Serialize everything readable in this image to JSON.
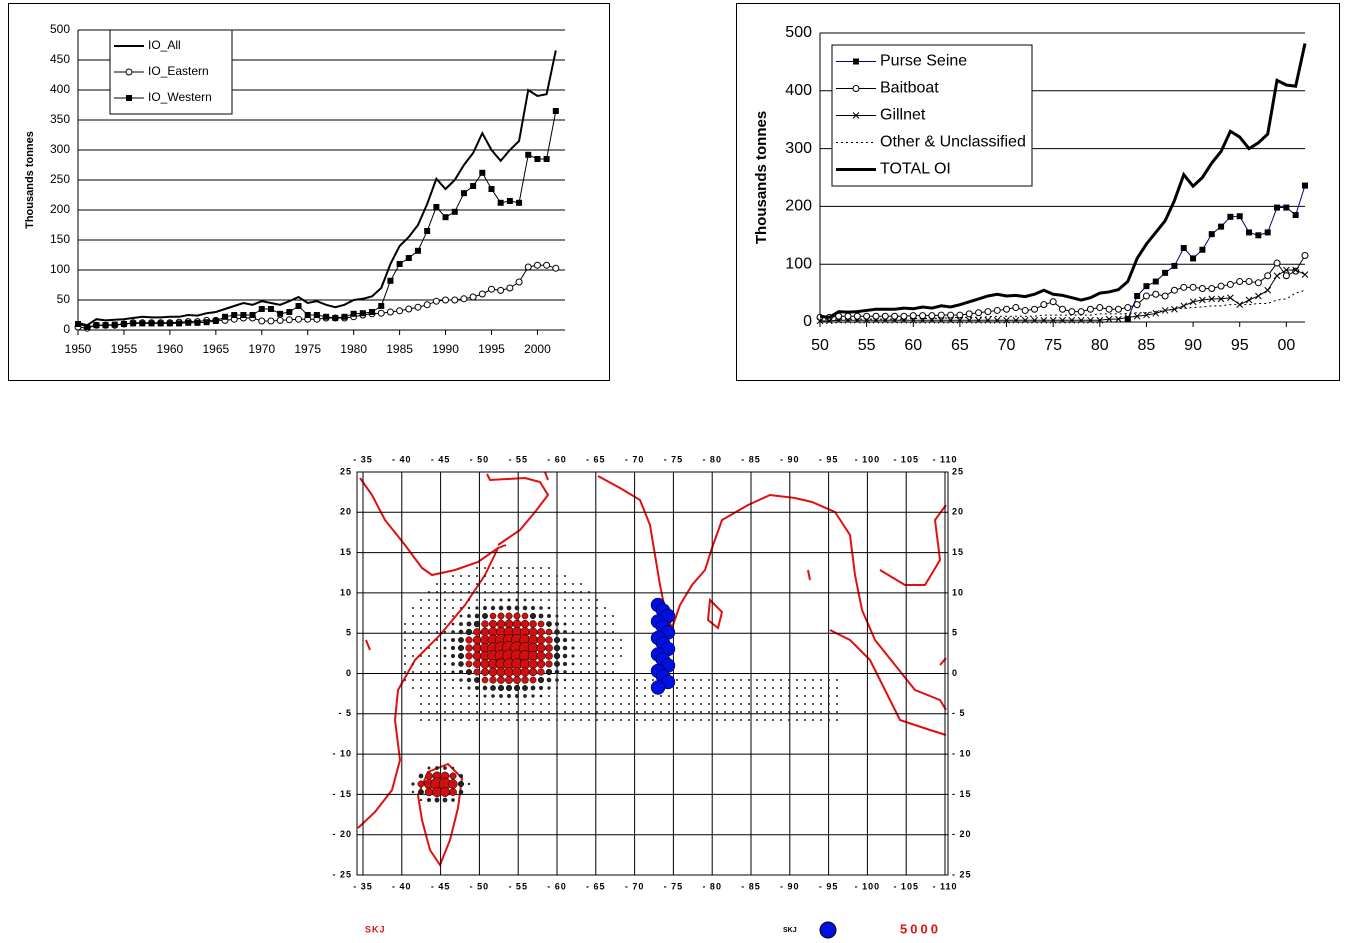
{
  "chart_data": [
    {
      "type": "line",
      "ylabel": "Thousands tonnes",
      "x": [
        1950,
        1951,
        1952,
        1953,
        1954,
        1955,
        1956,
        1957,
        1958,
        1959,
        1960,
        1961,
        1962,
        1963,
        1964,
        1965,
        1966,
        1967,
        1968,
        1969,
        1970,
        1971,
        1972,
        1973,
        1974,
        1975,
        1976,
        1977,
        1978,
        1979,
        1980,
        1981,
        1982,
        1983,
        1984,
        1985,
        1986,
        1987,
        1988,
        1989,
        1990,
        1991,
        1992,
        1993,
        1994,
        1995,
        1996,
        1997,
        1998,
        1999,
        2000,
        2001,
        2002
      ],
      "xlim": [
        1950,
        2003
      ],
      "xticks": [
        1950,
        1955,
        1960,
        1965,
        1970,
        1975,
        1980,
        1985,
        1990,
        1995,
        2000
      ],
      "ylim": [
        0,
        500
      ],
      "yticks": [
        0,
        50,
        100,
        150,
        200,
        250,
        300,
        350,
        400,
        450,
        500
      ],
      "grid": true,
      "legend": "top-left",
      "series": [
        {
          "name": "IO_All",
          "color": "#000000",
          "marker": "none",
          "width": 2,
          "values": [
            12,
            8,
            18,
            16,
            17,
            18,
            20,
            22,
            21,
            21,
            22,
            22,
            25,
            24,
            28,
            30,
            35,
            40,
            45,
            42,
            48,
            45,
            42,
            48,
            55,
            45,
            48,
            42,
            38,
            42,
            50,
            52,
            56,
            70,
            110,
            140,
            155,
            175,
            210,
            252,
            235,
            250,
            275,
            295,
            328,
            300,
            282,
            300,
            315,
            400,
            390,
            393,
            466
          ]
        },
        {
          "name": "IO_Eastern",
          "color": "#000000",
          "marker": "circle",
          "width": 1,
          "values": [
            5,
            3,
            8,
            8,
            8,
            10,
            12,
            12,
            12,
            12,
            12,
            13,
            14,
            14,
            16,
            16,
            16,
            18,
            20,
            20,
            15,
            15,
            16,
            17,
            18,
            18,
            18,
            20,
            20,
            20,
            22,
            25,
            27,
            28,
            30,
            32,
            35,
            38,
            42,
            48,
            50,
            50,
            52,
            55,
            60,
            68,
            66,
            70,
            80,
            105,
            108,
            108,
            103
          ]
        },
        {
          "name": "IO_Western",
          "color": "#000000",
          "marker": "square",
          "width": 1,
          "values": [
            10,
            5,
            8,
            8,
            9,
            10,
            11,
            11,
            11,
            11,
            11,
            11,
            12,
            12,
            13,
            15,
            22,
            25,
            25,
            25,
            35,
            35,
            27,
            30,
            40,
            25,
            25,
            22,
            20,
            22,
            27,
            28,
            30,
            40,
            82,
            110,
            120,
            132,
            165,
            205,
            188,
            197,
            228,
            240,
            262,
            235,
            212,
            215,
            212,
            292,
            285,
            285,
            365
          ]
        }
      ]
    },
    {
      "type": "line",
      "ylabel": "Thousands tonnes",
      "x": [
        1950,
        1951,
        1952,
        1953,
        1954,
        1955,
        1956,
        1957,
        1958,
        1959,
        1960,
        1961,
        1962,
        1963,
        1964,
        1965,
        1966,
        1967,
        1968,
        1969,
        1970,
        1971,
        1972,
        1973,
        1974,
        1975,
        1976,
        1977,
        1978,
        1979,
        1980,
        1981,
        1982,
        1983,
        1984,
        1985,
        1986,
        1987,
        1988,
        1989,
        1990,
        1991,
        1992,
        1993,
        1994,
        1995,
        1996,
        1997,
        1998,
        1999,
        2000,
        2001,
        2002
      ],
      "xlim": [
        1950,
        2002
      ],
      "xticks": [
        {
          "value": 1950,
          "label": "50"
        },
        {
          "value": 1955,
          "label": "55"
        },
        {
          "value": 1960,
          "label": "60"
        },
        {
          "value": 1965,
          "label": "65"
        },
        {
          "value": 1970,
          "label": "70"
        },
        {
          "value": 1975,
          "label": "75"
        },
        {
          "value": 1980,
          "label": "80"
        },
        {
          "value": 1985,
          "label": "85"
        },
        {
          "value": 1990,
          "label": "90"
        },
        {
          "value": 1995,
          "label": "95"
        },
        {
          "value": 2000,
          "label": "00"
        }
      ],
      "ylim": [
        0,
        500
      ],
      "yticks": [
        0,
        100,
        200,
        300,
        400,
        500
      ],
      "grid": true,
      "legend": "top-left",
      "series": [
        {
          "name": "Purse Seine",
          "color": "#000080",
          "marker": "square",
          "width": 1,
          "values": [
            null,
            null,
            null,
            null,
            null,
            null,
            null,
            null,
            null,
            null,
            null,
            null,
            null,
            null,
            null,
            null,
            null,
            null,
            null,
            null,
            null,
            null,
            null,
            null,
            null,
            null,
            null,
            null,
            null,
            null,
            null,
            null,
            null,
            5,
            45,
            62,
            70,
            85,
            97,
            128,
            110,
            125,
            152,
            165,
            182,
            183,
            155,
            150,
            155,
            198,
            198,
            185,
            236
          ]
        },
        {
          "name": "Baitboat",
          "color": "#000000",
          "marker": "circle",
          "width": 1,
          "values": [
            8,
            8,
            10,
            10,
            10,
            10,
            10,
            10,
            10,
            10,
            11,
            11,
            11,
            12,
            12,
            12,
            14,
            16,
            18,
            20,
            22,
            25,
            20,
            22,
            30,
            35,
            22,
            18,
            18,
            22,
            25,
            22,
            22,
            25,
            30,
            45,
            48,
            45,
            55,
            60,
            60,
            58,
            58,
            62,
            65,
            70,
            70,
            68,
            80,
            102,
            80,
            88,
            115
          ]
        },
        {
          "name": "Gillnet",
          "color": "#000000",
          "marker": "x",
          "width": 1,
          "values": [
            2,
            2,
            3,
            3,
            3,
            3,
            3,
            3,
            3,
            3,
            3,
            3,
            3,
            3,
            3,
            3,
            3,
            3,
            3,
            3,
            3,
            3,
            3,
            3,
            3,
            3,
            3,
            3,
            3,
            3,
            3,
            5,
            5,
            8,
            10,
            12,
            15,
            20,
            22,
            28,
            35,
            38,
            40,
            40,
            42,
            30,
            38,
            45,
            55,
            80,
            90,
            90,
            82
          ]
        },
        {
          "name": "Other & Unclassified",
          "color": "#000000",
          "marker": "none",
          "width": 1,
          "dash": "dotted",
          "values": [
            5,
            5,
            5,
            5,
            5,
            5,
            5,
            5,
            5,
            5,
            6,
            6,
            6,
            7,
            7,
            8,
            8,
            8,
            9,
            10,
            10,
            10,
            10,
            10,
            12,
            12,
            12,
            12,
            12,
            12,
            14,
            14,
            14,
            15,
            16,
            16,
            18,
            20,
            22,
            24,
            25,
            26,
            28,
            28,
            30,
            30,
            30,
            32,
            32,
            38,
            40,
            50,
            55
          ]
        },
        {
          "name": "TOTAL OI",
          "color": "#000000",
          "marker": "none",
          "width": 3,
          "values": [
            10,
            8,
            18,
            17,
            18,
            20,
            22,
            22,
            22,
            24,
            23,
            26,
            24,
            28,
            26,
            30,
            35,
            40,
            45,
            48,
            45,
            46,
            44,
            48,
            55,
            48,
            46,
            42,
            38,
            42,
            50,
            52,
            56,
            70,
            110,
            135,
            155,
            175,
            210,
            255,
            235,
            250,
            275,
            295,
            330,
            320,
            300,
            310,
            325,
            418,
            410,
            408,
            482
          ]
        }
      ]
    }
  ],
  "map": {
    "x_labels": [
      "- 35",
      "- 40",
      "- 45",
      "- 50",
      "- 55",
      "- 60",
      "- 65",
      "- 70",
      "- 75",
      "- 80",
      "- 85",
      "- 90",
      "- 95",
      "- 100",
      "- 105",
      "- 110"
    ],
    "y_labels": [
      "25",
      "20",
      "15",
      "10",
      "5",
      "0",
      "- 5",
      "- 10",
      "- 15",
      "- 20",
      "- 25"
    ],
    "left_label": "SKJ",
    "legend_label": "SKJ",
    "legend_value": "5000"
  }
}
